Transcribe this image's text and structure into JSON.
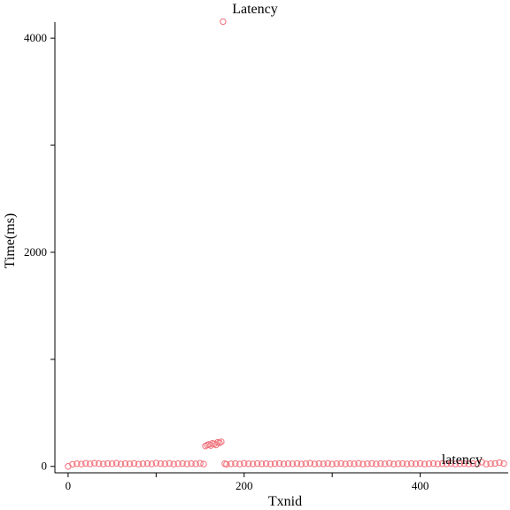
{
  "chart_data": {
    "type": "scatter",
    "title": "Latency",
    "xlabel": "Txnid",
    "ylabel": "Time(ms)",
    "xlim": [
      -15,
      500
    ],
    "ylim": [
      -60,
      4150
    ],
    "x_ticks": [
      0,
      100,
      200,
      300,
      400
    ],
    "x_tick_labels": [
      "0",
      "",
      "200",
      "",
      "400"
    ],
    "y_ticks": [
      0,
      1000,
      2000,
      3000,
      4000
    ],
    "y_tick_labels": [
      "0",
      "",
      "2000",
      "",
      "4000"
    ],
    "grid": false,
    "legend": {
      "placement": "bottom-right",
      "entries": [
        "latency"
      ]
    },
    "marker": "open-circle",
    "series_color": "#f0707a",
    "series": [
      {
        "name": "latency",
        "x": [
          0,
          5,
          10,
          15,
          20,
          25,
          30,
          35,
          40,
          45,
          50,
          55,
          60,
          65,
          70,
          75,
          80,
          85,
          90,
          95,
          100,
          105,
          110,
          115,
          120,
          125,
          130,
          135,
          140,
          145,
          150,
          154,
          156,
          158,
          160,
          162,
          164,
          166,
          168,
          170,
          172,
          174,
          176,
          178,
          180,
          185,
          190,
          195,
          200,
          205,
          210,
          215,
          220,
          225,
          230,
          235,
          240,
          245,
          250,
          255,
          260,
          265,
          270,
          275,
          280,
          285,
          290,
          295,
          300,
          305,
          310,
          315,
          320,
          325,
          330,
          335,
          340,
          345,
          350,
          355,
          360,
          365,
          370,
          375,
          380,
          385,
          390,
          395,
          400,
          405,
          410,
          415,
          420,
          425,
          430,
          435,
          440,
          445,
          450,
          455,
          460,
          465,
          470,
          475,
          480,
          485,
          490,
          495
        ],
        "y": [
          0,
          20,
          25,
          22,
          28,
          24,
          30,
          26,
          23,
          27,
          25,
          29,
          22,
          26,
          24,
          28,
          21,
          25,
          27,
          23,
          30,
          26,
          24,
          28,
          22,
          25,
          27,
          23,
          26,
          24,
          29,
          22,
          190,
          200,
          205,
          195,
          215,
          210,
          200,
          225,
          220,
          230,
          4155,
          25,
          20,
          24,
          26,
          22,
          28,
          25,
          23,
          27,
          24,
          26,
          22,
          25,
          28,
          23,
          26,
          24,
          27,
          22,
          25,
          29,
          23,
          26,
          24,
          28,
          22,
          25,
          27,
          23,
          26,
          24,
          28,
          22,
          25,
          27,
          23,
          26,
          24,
          29,
          22,
          25,
          27,
          23,
          26,
          24,
          28,
          22,
          25,
          27,
          23,
          26,
          24,
          28,
          22,
          25,
          27,
          23,
          26,
          24,
          40,
          22,
          25,
          27,
          35,
          26
        ]
      }
    ]
  }
}
